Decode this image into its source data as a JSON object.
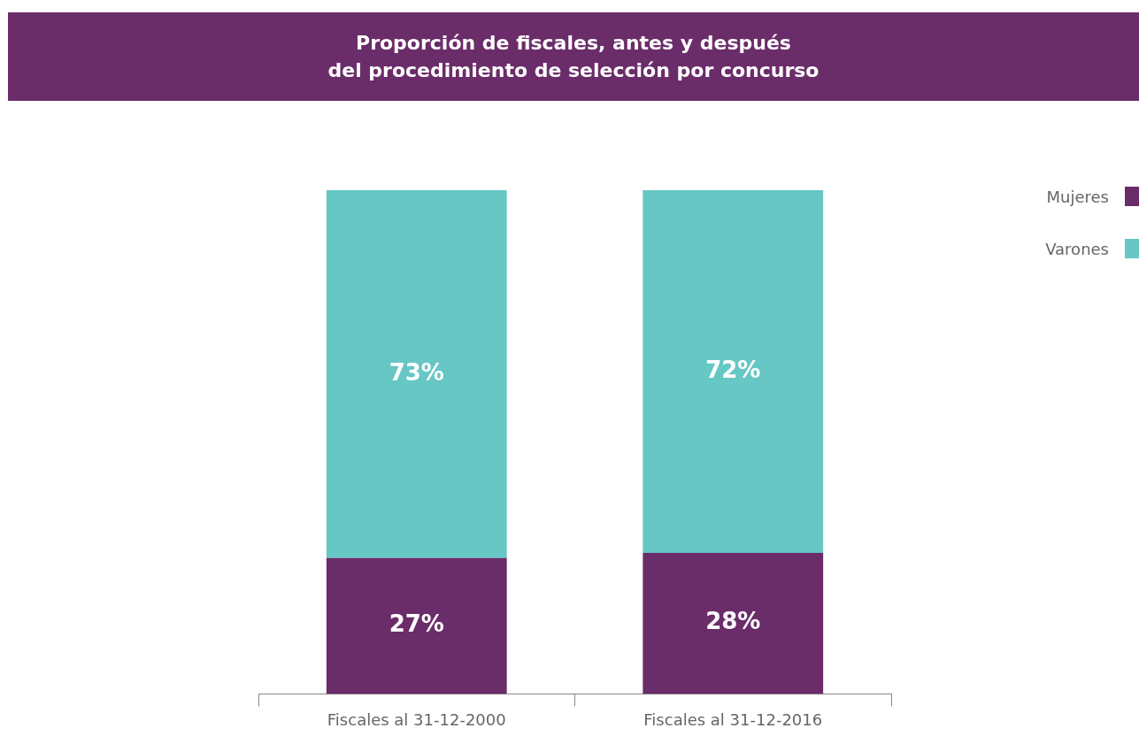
{
  "chart_data": {
    "type": "bar",
    "title": "Proporción de fiscales, antes y después\ndel procedimiento de selección por concurso",
    "categories": [
      "Fiscales al 31-12-2000",
      "Fiscales al 31-12-2016"
    ],
    "stacked": true,
    "legend": "top right",
    "tick_labels": "x",
    "ylim": [
      0,
      100
    ],
    "series": [
      {
        "name": "Mujeres",
        "color": "#6b2c6a",
        "values": [
          27,
          28
        ],
        "value_labels": [
          "27%",
          "28%"
        ]
      },
      {
        "name": "Varones",
        "color": "#66c7c4",
        "values": [
          73,
          72
        ],
        "value_labels": [
          "73%",
          "72%"
        ]
      }
    ]
  }
}
